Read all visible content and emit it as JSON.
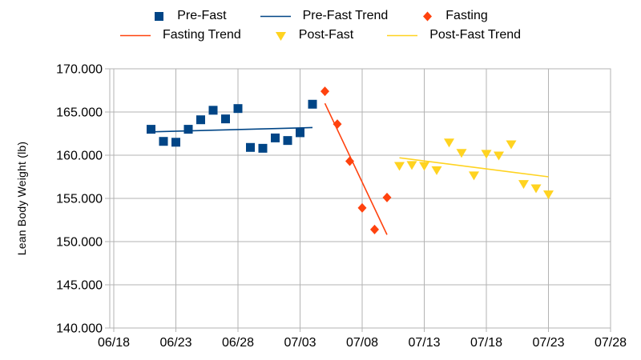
{
  "chart_data": {
    "type": "scatter",
    "title": "",
    "xlabel": "",
    "ylabel": "Lean Body Weight (lb)",
    "ylim": [
      140,
      170
    ],
    "y_tick_step": 5,
    "y_tick_labels": [
      "170.000",
      "165.000",
      "160.000",
      "155.000",
      "150.000",
      "145.000",
      "140.000"
    ],
    "x_tick_labels": [
      "06/18",
      "06/23",
      "06/28",
      "07/03",
      "07/08",
      "07/13",
      "07/18",
      "07/23",
      "07/28"
    ],
    "x_tick_step_days": 5,
    "grid": true,
    "legend_position": "top-center-two-rows",
    "colors": {
      "pre_fast": "#004586",
      "fasting": "#ff420e",
      "post_fast": "#ffd320",
      "grid": "#b3b3b3",
      "text": "#000000",
      "background": "#ffffff"
    },
    "series": [
      {
        "name": "Pre-Fast",
        "kind": "points",
        "marker": "square",
        "color_key": "pre_fast",
        "points": [
          [
            "06/21",
            163.0
          ],
          [
            "06/22",
            161.6
          ],
          [
            "06/23",
            161.5
          ],
          [
            "06/24",
            163.0
          ],
          [
            "06/25",
            164.1
          ],
          [
            "06/26",
            165.2
          ],
          [
            "06/27",
            164.2
          ],
          [
            "06/28",
            165.4
          ],
          [
            "06/29",
            160.9
          ],
          [
            "06/30",
            160.8
          ],
          [
            "07/01",
            162.0
          ],
          [
            "07/02",
            161.7
          ],
          [
            "07/03",
            162.6
          ],
          [
            "07/04",
            165.9
          ]
        ]
      },
      {
        "name": "Pre-Fast Trend",
        "kind": "line",
        "color_key": "pre_fast",
        "points": [
          [
            "06/21",
            162.7
          ],
          [
            "07/04",
            163.2
          ]
        ]
      },
      {
        "name": "Fasting",
        "kind": "points",
        "marker": "diamond",
        "color_key": "fasting",
        "points": [
          [
            "07/05",
            167.4
          ],
          [
            "07/06",
            163.6
          ],
          [
            "07/07",
            159.3
          ],
          [
            "07/08",
            153.9
          ],
          [
            "07/09",
            151.4
          ],
          [
            "07/10",
            155.1
          ]
        ]
      },
      {
        "name": "Fasting Trend",
        "kind": "line",
        "color_key": "fasting",
        "points": [
          [
            "07/05",
            166.0
          ],
          [
            "07/10",
            150.8
          ]
        ]
      },
      {
        "name": "Post-Fast",
        "kind": "points",
        "marker": "triangle-down",
        "color_key": "post_fast",
        "points": [
          [
            "07/11",
            158.8
          ],
          [
            "07/12",
            158.9
          ],
          [
            "07/13",
            158.8
          ],
          [
            "07/14",
            158.3
          ],
          [
            "07/15",
            161.5
          ],
          [
            "07/16",
            160.3
          ],
          [
            "07/17",
            157.7
          ],
          [
            "07/18",
            160.2
          ],
          [
            "07/19",
            160.0
          ],
          [
            "07/20",
            161.3
          ],
          [
            "07/21",
            156.7
          ],
          [
            "07/22",
            156.2
          ],
          [
            "07/23",
            155.5
          ]
        ]
      },
      {
        "name": "Post-Fast Trend",
        "kind": "line",
        "color_key": "post_fast",
        "points": [
          [
            "07/11",
            159.7
          ],
          [
            "07/23",
            157.5
          ]
        ]
      }
    ],
    "legend_rows": [
      [
        0,
        1,
        2
      ],
      [
        3,
        4,
        5
      ]
    ],
    "x_base_date": "06/18"
  }
}
